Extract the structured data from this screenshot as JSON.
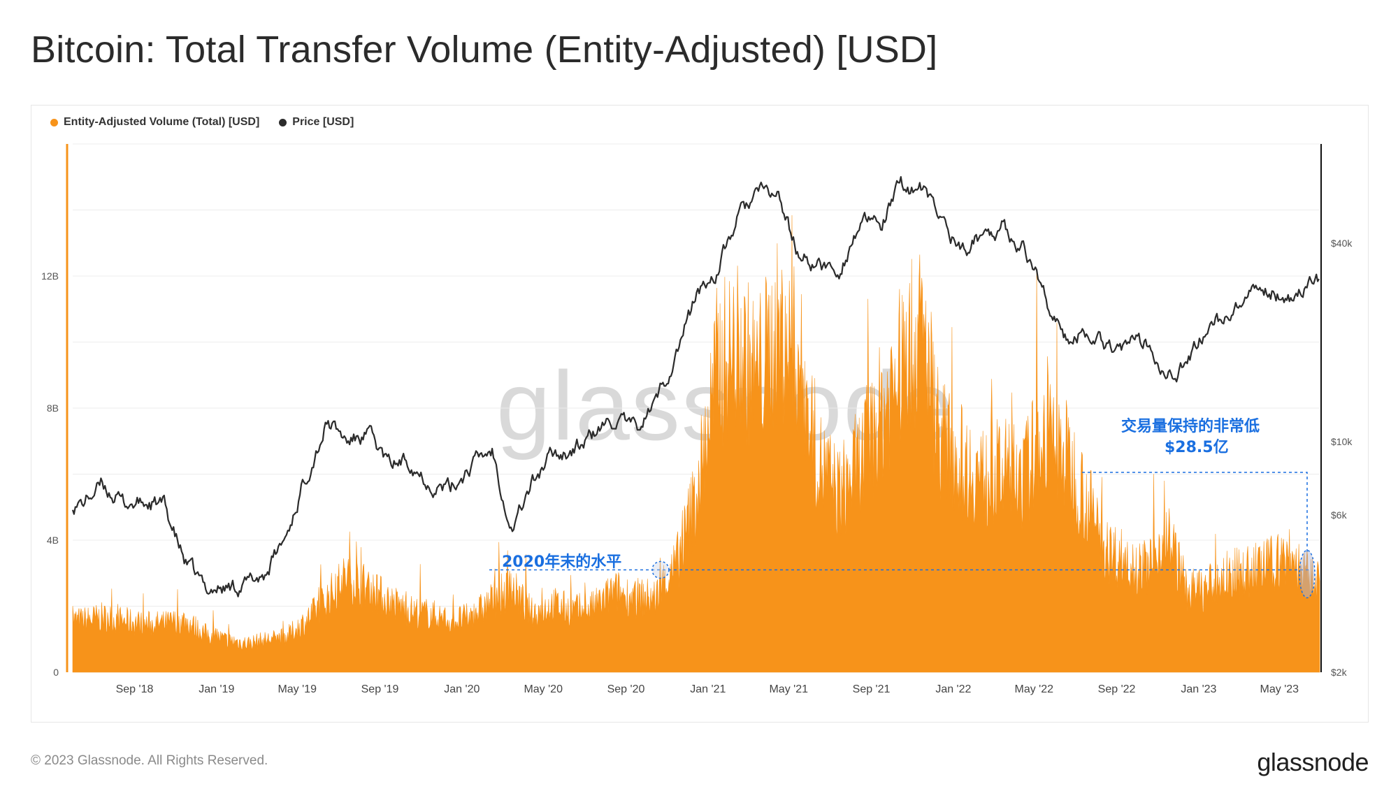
{
  "title": "Bitcoin: Total Transfer Volume (Entity-Adjusted) [USD]",
  "footer": {
    "copyright": "© 2023 Glassnode. All Rights Reserved.",
    "logo": "glassnode"
  },
  "watermark": "glassnode",
  "annotations": {
    "left_label": "2020年末的水平",
    "right_label_line1": "交易量保持的非常低",
    "right_label_line2": "$28.5亿"
  },
  "colors": {
    "volume": "#f7931a",
    "price": "#2b2b2b",
    "annotation": "#1a6fe0",
    "grid": "#ececec"
  },
  "chart_data": {
    "type": "area",
    "legend_position": "top-left",
    "legend": [
      "Entity-Adjusted Volume (Total) [USD]",
      "Price [USD]"
    ],
    "x_tick_labels": [
      "Sep '18",
      "Jan '19",
      "May '19",
      "Sep '19",
      "Jan '20",
      "May '20",
      "Sep '20",
      "Jan '21",
      "May '21",
      "Sep '21",
      "Jan '22",
      "May '22",
      "Sep '22",
      "Jan '23",
      "May '23"
    ],
    "x_range": [
      "2018-06-01",
      "2023-06-30"
    ],
    "y_left": {
      "label": "",
      "ticks": [
        "0",
        "4B",
        "8B",
        "12B"
      ],
      "tick_values": [
        0,
        4,
        8,
        12
      ],
      "unit": "B USD",
      "range": [
        0,
        16
      ]
    },
    "y_right": {
      "label": "",
      "scale": "log",
      "ticks": [
        "$2k",
        "$6k",
        "$10k",
        "$40k"
      ],
      "tick_values": [
        2000,
        6000,
        10000,
        40000
      ],
      "range": [
        2000,
        80000
      ]
    },
    "reference_level_B": 3.1,
    "series": [
      {
        "name": "Entity-Adjusted Volume (Total) [USD]",
        "axis": "left",
        "x": [
          "2018-06",
          "2018-07",
          "2018-08",
          "2018-09",
          "2018-10",
          "2018-11",
          "2018-12",
          "2019-01",
          "2019-02",
          "2019-03",
          "2019-04",
          "2019-05",
          "2019-06",
          "2019-07",
          "2019-08",
          "2019-09",
          "2019-10",
          "2019-11",
          "2019-12",
          "2020-01",
          "2020-02",
          "2020-03",
          "2020-04",
          "2020-05",
          "2020-06",
          "2020-07",
          "2020-08",
          "2020-09",
          "2020-10",
          "2020-11",
          "2020-12",
          "2021-01",
          "2021-02",
          "2021-03",
          "2021-04",
          "2021-05",
          "2021-06",
          "2021-07",
          "2021-08",
          "2021-09",
          "2021-10",
          "2021-11",
          "2021-12",
          "2022-01",
          "2022-02",
          "2022-03",
          "2022-04",
          "2022-05",
          "2022-06",
          "2022-07",
          "2022-08",
          "2022-09",
          "2022-10",
          "2022-11",
          "2022-12",
          "2023-01",
          "2023-02",
          "2023-03",
          "2023-04",
          "2023-05",
          "2023-06"
        ],
        "values": [
          1.6,
          1.7,
          1.6,
          1.5,
          1.5,
          1.6,
          1.2,
          1.0,
          0.9,
          1.0,
          1.1,
          1.6,
          2.3,
          3.0,
          2.6,
          2.2,
          1.9,
          1.8,
          1.6,
          1.7,
          2.2,
          2.6,
          1.8,
          2.1,
          1.9,
          2.0,
          2.5,
          2.3,
          2.3,
          3.3,
          5.5,
          9.5,
          10.0,
          9.2,
          10.5,
          9.8,
          6.5,
          5.5,
          6.5,
          8.0,
          9.5,
          10.5,
          7.2,
          6.5,
          6.0,
          6.2,
          6.0,
          7.5,
          6.8,
          5.5,
          3.8,
          3.5,
          3.2,
          4.3,
          2.5,
          2.6,
          3.0,
          3.1,
          3.3,
          3.6,
          2.85
        ]
      },
      {
        "name": "Price [USD]",
        "axis": "right",
        "x": [
          "2018-06",
          "2018-07",
          "2018-08",
          "2018-09",
          "2018-10",
          "2018-11",
          "2018-12",
          "2019-01",
          "2019-02",
          "2019-03",
          "2019-04",
          "2019-05",
          "2019-06",
          "2019-07",
          "2019-08",
          "2019-09",
          "2019-10",
          "2019-11",
          "2019-12",
          "2020-01",
          "2020-02",
          "2020-03",
          "2020-04",
          "2020-05",
          "2020-06",
          "2020-07",
          "2020-08",
          "2020-09",
          "2020-10",
          "2020-11",
          "2020-12",
          "2021-01",
          "2021-02",
          "2021-03",
          "2021-04",
          "2021-05",
          "2021-06",
          "2021-07",
          "2021-08",
          "2021-09",
          "2021-10",
          "2021-11",
          "2021-12",
          "2022-01",
          "2022-02",
          "2022-03",
          "2022-04",
          "2022-05",
          "2022-06",
          "2022-07",
          "2022-08",
          "2022-09",
          "2022-10",
          "2022-11",
          "2022-12",
          "2023-01",
          "2023-02",
          "2023-03",
          "2023-04",
          "2023-05",
          "2023-06"
        ],
        "values": [
          6500,
          7400,
          6500,
          6500,
          6400,
          4300,
          3600,
          3600,
          3700,
          4000,
          5200,
          8000,
          11500,
          10000,
          10500,
          8500,
          8800,
          7500,
          7200,
          8500,
          9500,
          5500,
          7500,
          9200,
          9400,
          10500,
          11700,
          10800,
          13200,
          18500,
          28000,
          33000,
          48000,
          57000,
          56000,
          37000,
          34000,
          33000,
          46000,
          45000,
          60000,
          58000,
          47000,
          38000,
          43000,
          45000,
          39000,
          29000,
          20000,
          22000,
          20000,
          19500,
          20000,
          16500,
          16800,
          23000,
          23500,
          27000,
          29000,
          27500,
          30500
        ]
      }
    ]
  }
}
